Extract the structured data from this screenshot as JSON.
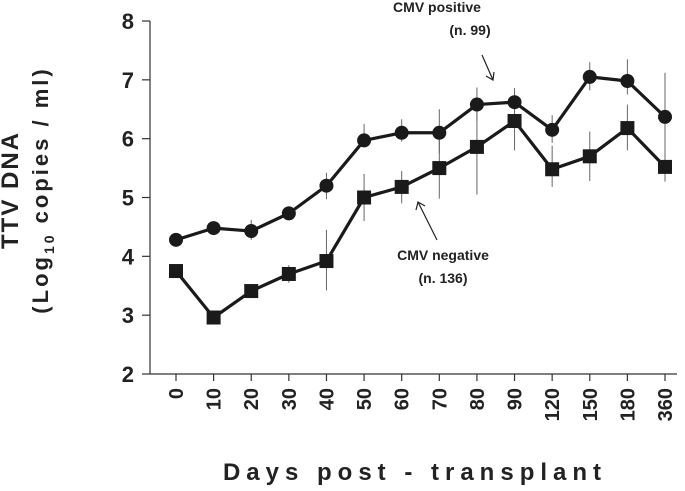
{
  "chart_data": {
    "type": "line",
    "title": "",
    "xlabel": "Days post - transplant",
    "ylabel": {
      "line1": "TTV DNA",
      "line2_prefix": "(Log",
      "line2_sub": "10",
      "line2_suffix": " copies / ml)"
    },
    "categories": [
      "0",
      "10",
      "20",
      "30",
      "40",
      "50",
      "60",
      "70",
      "80",
      "90",
      "120",
      "150",
      "180",
      "360"
    ],
    "ylim": [
      2,
      8
    ],
    "yticks": [
      2,
      3,
      4,
      5,
      6,
      7,
      8
    ],
    "grid": false,
    "series": [
      {
        "name": "CMV positive",
        "n_label": "(n. 99)",
        "marker": "circle",
        "values": [
          4.28,
          4.48,
          4.43,
          4.73,
          5.2,
          5.97,
          6.1,
          6.1,
          6.58,
          6.62,
          6.15,
          7.05,
          6.98,
          6.37
        ],
        "err_high": [
          4.37,
          4.58,
          4.62,
          4.85,
          5.42,
          6.25,
          6.33,
          6.5,
          6.87,
          6.86,
          6.4,
          7.3,
          7.35,
          7.12
        ],
        "err_low": [
          4.19,
          4.4,
          4.28,
          4.62,
          4.97,
          5.88,
          5.95,
          5.75,
          6.3,
          6.45,
          5.93,
          6.82,
          6.75,
          5.58
        ]
      },
      {
        "name": "CMV negative",
        "n_label": "(n. 136)",
        "marker": "square",
        "values": [
          3.75,
          2.96,
          3.41,
          3.7,
          3.92,
          5.0,
          5.18,
          5.5,
          5.86,
          6.3,
          5.48,
          5.7,
          6.18,
          5.52
        ],
        "err_high": [
          3.75,
          2.96,
          3.5,
          3.85,
          4.45,
          5.4,
          5.45,
          6.03,
          6.6,
          6.8,
          5.88,
          6.12,
          6.58,
          6.25
        ],
        "err_low": [
          3.75,
          2.96,
          3.3,
          3.55,
          3.42,
          4.6,
          4.9,
          4.98,
          5.05,
          5.8,
          5.18,
          5.28,
          5.8,
          5.27
        ]
      }
    ]
  }
}
